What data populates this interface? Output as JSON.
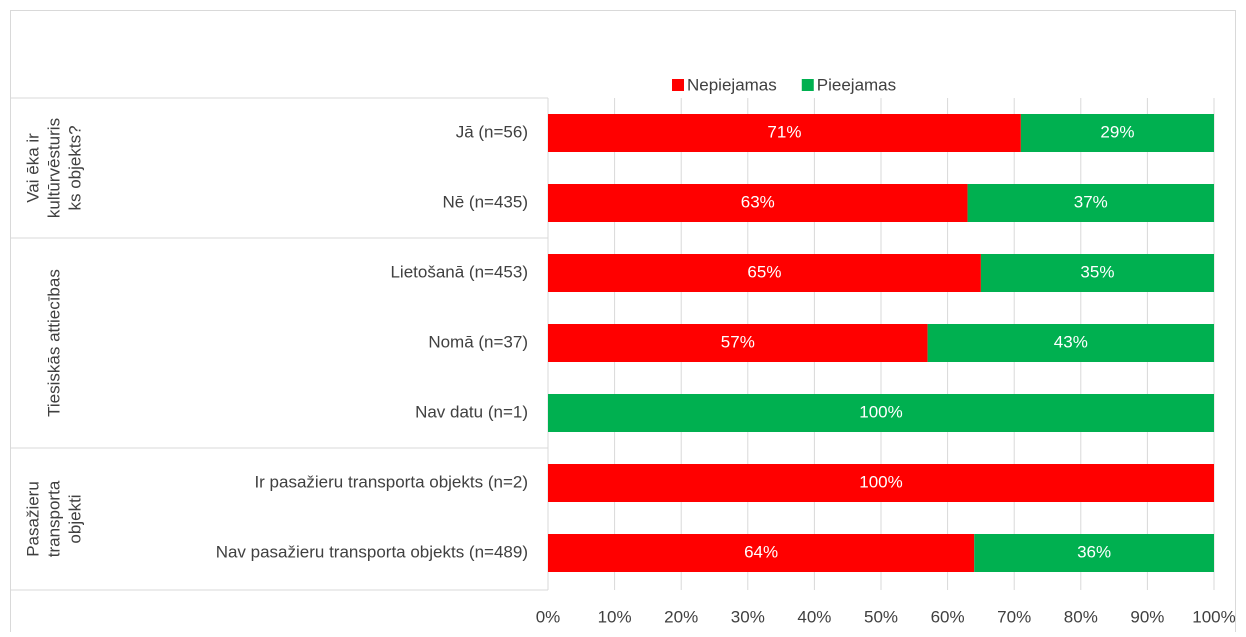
{
  "chart_data": {
    "type": "stacked_barh",
    "groups": [
      {
        "name": [
          "Vai ēka ir",
          "kultūrvēsturis",
          "ks objekts?"
        ],
        "categories": [
          "Jā (n=56)",
          "Nē (n=435)"
        ]
      },
      {
        "name": [
          "Tiesiskās attiecības"
        ],
        "categories": [
          "Lietošanā (n=453)",
          "Nomā (n=37)",
          "Nav datu (n=1)"
        ]
      },
      {
        "name": [
          "Pasažieru",
          "transporta",
          "objekti"
        ],
        "categories": [
          "Ir pasažieru transporta objekts (n=2)",
          "Nav pasažieru transporta objekts (n=489)"
        ]
      }
    ],
    "series": [
      {
        "name": "Nepiejamas",
        "color": "#ff0000",
        "values": [
          71,
          63,
          65,
          57,
          0,
          100,
          64
        ],
        "value_labels": [
          "71%",
          "63%",
          "65%",
          "57%",
          null,
          "100%",
          "64%"
        ]
      },
      {
        "name": "Pieejamas",
        "color": "#00b050",
        "values": [
          29,
          37,
          35,
          43,
          100,
          0,
          36
        ],
        "value_labels": [
          "29%",
          "37%",
          "35%",
          "43%",
          "100%",
          null,
          "36%"
        ]
      }
    ],
    "xlim": [
      0,
      100
    ],
    "xticks": [
      {
        "value": 0,
        "label": "0%"
      },
      {
        "value": 10,
        "label": "10%"
      },
      {
        "value": 20,
        "label": "20%"
      },
      {
        "value": 30,
        "label": "30%"
      },
      {
        "value": 40,
        "label": "40%"
      },
      {
        "value": 50,
        "label": "50%"
      },
      {
        "value": 60,
        "label": "60%"
      },
      {
        "value": 70,
        "label": "70%"
      },
      {
        "value": 80,
        "label": "80%"
      },
      {
        "value": 90,
        "label": "90%"
      },
      {
        "value": 100,
        "label": "100%"
      }
    ],
    "grid": true,
    "legend": "top"
  }
}
